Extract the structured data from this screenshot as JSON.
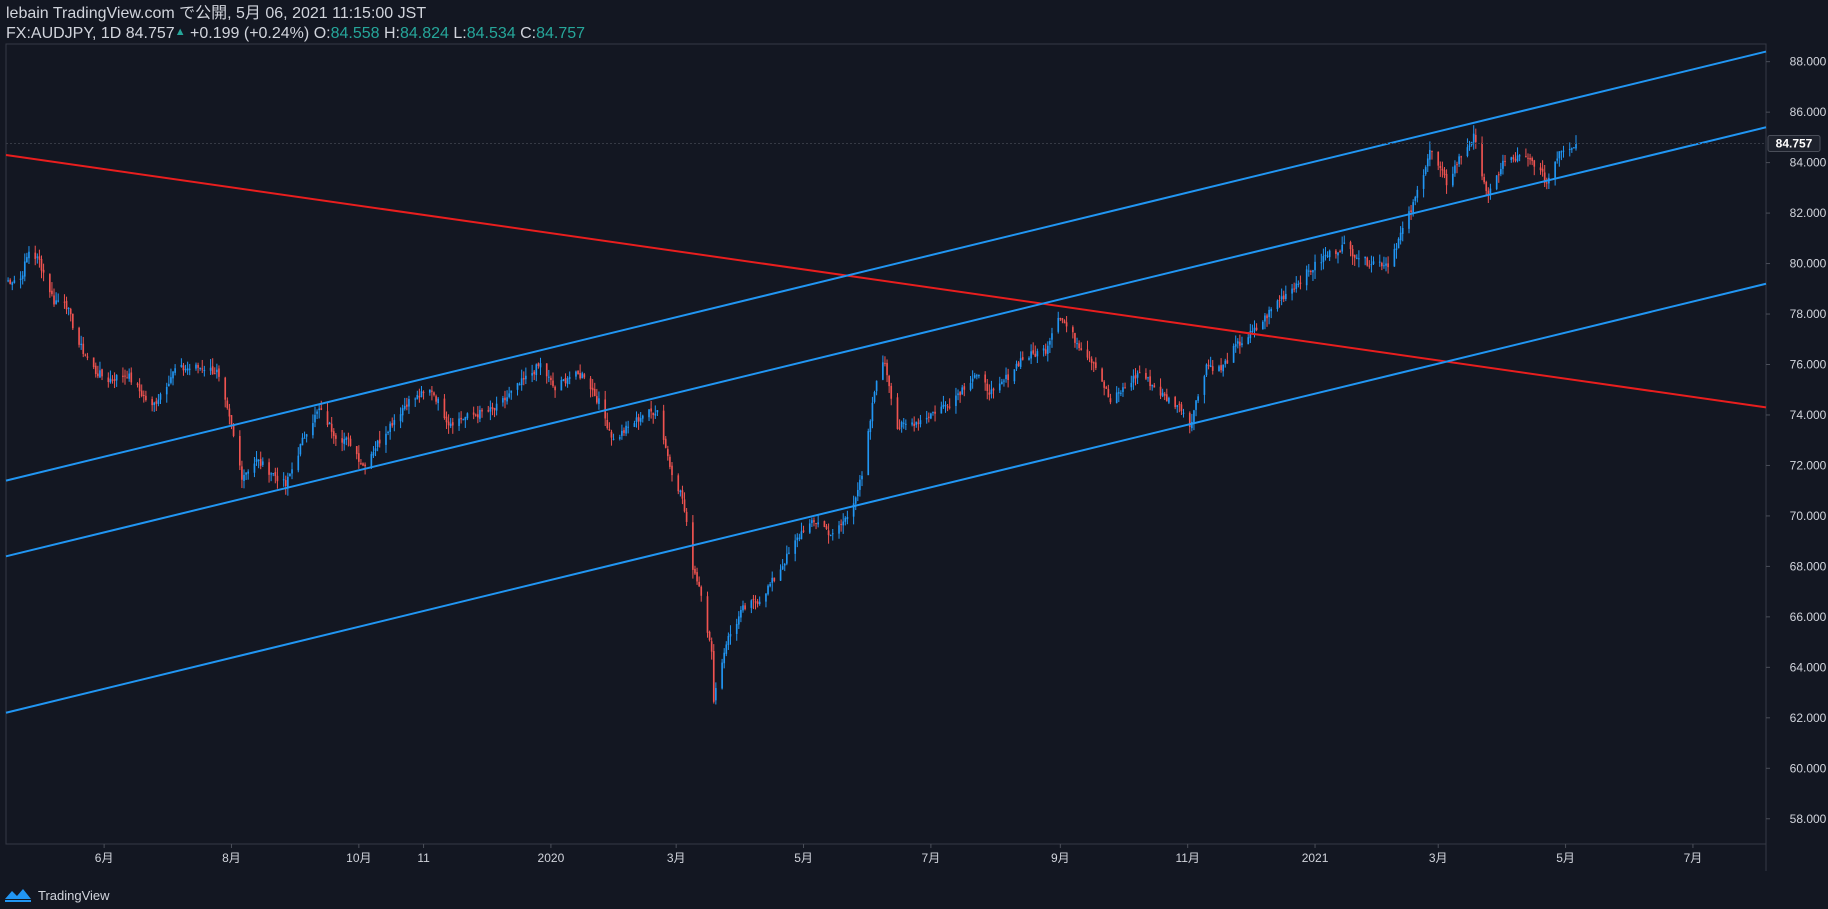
{
  "header": {
    "line1": "lebain TradingView.com で公開, 5月 06, 2021 11:15:00 JST",
    "symbol_prefix": "FX:AUDJPY, 1D 84.757",
    "change_arrow": "▲",
    "change": "+0.199 (+0.24%)",
    "o_label": "O:",
    "o_value": "84.558",
    "h_label": "H:",
    "h_value": "84.824",
    "l_label": "L:",
    "l_value": "84.534",
    "c_label": "C:",
    "c_value": "84.757"
  },
  "footer": {
    "brand": "TradingView"
  },
  "colors": {
    "background": "#131722",
    "up": "#2196f3",
    "down": "#ef5350",
    "channel_line": "#2196f3",
    "trend_line": "#e91e1e",
    "text": "#d1d4dc",
    "green": "#26a69a"
  },
  "chart_data": {
    "type": "candlestick",
    "symbol": "FX:AUDJPY",
    "interval": "1D",
    "last_price": 84.757,
    "last_price_label": "84.757",
    "ylim": [
      57.0,
      88.7
    ],
    "y_ticks": [
      "58.000",
      "60.000",
      "62.000",
      "64.000",
      "66.000",
      "68.000",
      "70.000",
      "72.000",
      "74.000",
      "76.000",
      "78.000",
      "80.000",
      "82.000",
      "84.000",
      "86.000",
      "88.000"
    ],
    "x_range": [
      "2019-04-15",
      "2021-08-05"
    ],
    "x_ticks": [
      {
        "date": "2019-06-01",
        "label": "6月"
      },
      {
        "date": "2019-08-01",
        "label": "8月"
      },
      {
        "date": "2019-10-01",
        "label": "10月"
      },
      {
        "date": "2019-11-01",
        "label": "11"
      },
      {
        "date": "2020-01-01",
        "label": "2020"
      },
      {
        "date": "2020-03-01",
        "label": "3月"
      },
      {
        "date": "2020-05-01",
        "label": "5月"
      },
      {
        "date": "2020-07-01",
        "label": "7月"
      },
      {
        "date": "2020-09-01",
        "label": "9月"
      },
      {
        "date": "2020-11-01",
        "label": "11月"
      },
      {
        "date": "2021-01-01",
        "label": "2021"
      },
      {
        "date": "2021-03-01",
        "label": "3月"
      },
      {
        "date": "2021-05-01",
        "label": "5月"
      },
      {
        "date": "2021-07-01",
        "label": "7月"
      }
    ],
    "price_path": [
      [
        "2019-04-15",
        79.3
      ],
      [
        "2019-04-22",
        79.4
      ],
      [
        "2019-04-26",
        80.5
      ],
      [
        "2019-05-01",
        80.1
      ],
      [
        "2019-05-08",
        78.5
      ],
      [
        "2019-05-13",
        78.6
      ],
      [
        "2019-05-20",
        76.8
      ],
      [
        "2019-05-28",
        75.7
      ],
      [
        "2019-06-03",
        75.4
      ],
      [
        "2019-06-12",
        75.6
      ],
      [
        "2019-06-24",
        74.3
      ],
      [
        "2019-07-05",
        75.8
      ],
      [
        "2019-07-18",
        75.9
      ],
      [
        "2019-07-25",
        75.7
      ],
      [
        "2019-08-01",
        73.5
      ],
      [
        "2019-08-06",
        71.6
      ],
      [
        "2019-08-13",
        72.2
      ],
      [
        "2019-08-22",
        71.6
      ],
      [
        "2019-08-27",
        71.2
      ],
      [
        "2019-09-06",
        73.4
      ],
      [
        "2019-09-12",
        74.2
      ],
      [
        "2019-09-20",
        73.2
      ],
      [
        "2019-09-27",
        72.9
      ],
      [
        "2019-10-03",
        72.0
      ],
      [
        "2019-10-15",
        73.5
      ],
      [
        "2019-10-24",
        74.5
      ],
      [
        "2019-11-05",
        75.0
      ],
      [
        "2019-11-13",
        73.7
      ],
      [
        "2019-11-25",
        74.0
      ],
      [
        "2019-12-05",
        74.2
      ],
      [
        "2019-12-17",
        75.2
      ],
      [
        "2019-12-27",
        76.0
      ],
      [
        "2020-01-03",
        75.0
      ],
      [
        "2020-01-09",
        75.5
      ],
      [
        "2020-01-17",
        75.6
      ],
      [
        "2020-01-24",
        74.5
      ],
      [
        "2020-01-31",
        73.0
      ],
      [
        "2020-02-07",
        73.5
      ],
      [
        "2020-02-14",
        74.0
      ],
      [
        "2020-02-21",
        74.2
      ],
      [
        "2020-02-27",
        72.0
      ],
      [
        "2020-03-04",
        70.7
      ],
      [
        "2020-03-09",
        68.0
      ],
      [
        "2020-03-13",
        67.0
      ],
      [
        "2020-03-18",
        64.5
      ],
      [
        "2020-03-19",
        62.8
      ],
      [
        "2020-03-25",
        65.0
      ],
      [
        "2020-04-02",
        66.3
      ],
      [
        "2020-04-10",
        66.7
      ],
      [
        "2020-04-17",
        67.5
      ],
      [
        "2020-04-24",
        68.5
      ],
      [
        "2020-05-01",
        69.5
      ],
      [
        "2020-05-08",
        69.8
      ],
      [
        "2020-05-15",
        69.2
      ],
      [
        "2020-05-22",
        70.0
      ],
      [
        "2020-05-29",
        71.5
      ],
      [
        "2020-06-05",
        75.5
      ],
      [
        "2020-06-09",
        76.1
      ],
      [
        "2020-06-15",
        73.5
      ],
      [
        "2020-06-26",
        73.8
      ],
      [
        "2020-07-10",
        74.5
      ],
      [
        "2020-07-22",
        75.6
      ],
      [
        "2020-07-31",
        74.8
      ],
      [
        "2020-08-13",
        76.2
      ],
      [
        "2020-08-25",
        76.6
      ],
      [
        "2020-08-31",
        78.0
      ],
      [
        "2020-09-08",
        77.0
      ],
      [
        "2020-09-18",
        76.0
      ],
      [
        "2020-09-25",
        74.5
      ],
      [
        "2020-10-09",
        75.7
      ],
      [
        "2020-10-21",
        74.7
      ],
      [
        "2020-10-29",
        74.3
      ],
      [
        "2020-11-02",
        73.6
      ],
      [
        "2020-11-10",
        76.0
      ],
      [
        "2020-11-17",
        75.8
      ],
      [
        "2020-11-24",
        76.7
      ],
      [
        "2020-12-04",
        77.4
      ],
      [
        "2020-12-14",
        78.5
      ],
      [
        "2020-12-28",
        79.6
      ],
      [
        "2021-01-06",
        80.3
      ],
      [
        "2021-01-15",
        80.7
      ],
      [
        "2021-01-25",
        80.1
      ],
      [
        "2021-02-05",
        80.0
      ],
      [
        "2021-02-17",
        82.3
      ],
      [
        "2021-02-25",
        84.5
      ],
      [
        "2021-03-05",
        83.2
      ],
      [
        "2021-03-12",
        84.3
      ],
      [
        "2021-03-18",
        85.0
      ],
      [
        "2021-03-25",
        82.6
      ],
      [
        "2021-04-01",
        84.0
      ],
      [
        "2021-04-09",
        84.2
      ],
      [
        "2021-04-16",
        84.0
      ],
      [
        "2021-04-22",
        83.2
      ],
      [
        "2021-04-28",
        84.5
      ],
      [
        "2021-05-06",
        84.757
      ]
    ],
    "drawings": [
      {
        "type": "trend_line",
        "color": "red",
        "from": [
          "2019-04-15",
          84.3
        ],
        "to": [
          "2021-08-05",
          74.3
        ]
      },
      {
        "type": "trend_line",
        "color": "blue",
        "from": [
          "2019-04-15",
          71.4
        ],
        "to": [
          "2021-08-05",
          88.4
        ]
      },
      {
        "type": "trend_line",
        "color": "blue",
        "from": [
          "2019-04-15",
          68.4
        ],
        "to": [
          "2021-08-05",
          85.4
        ]
      },
      {
        "type": "trend_line",
        "color": "blue",
        "from": [
          "2019-04-15",
          62.2
        ],
        "to": [
          "2021-08-05",
          79.2
        ]
      }
    ]
  }
}
